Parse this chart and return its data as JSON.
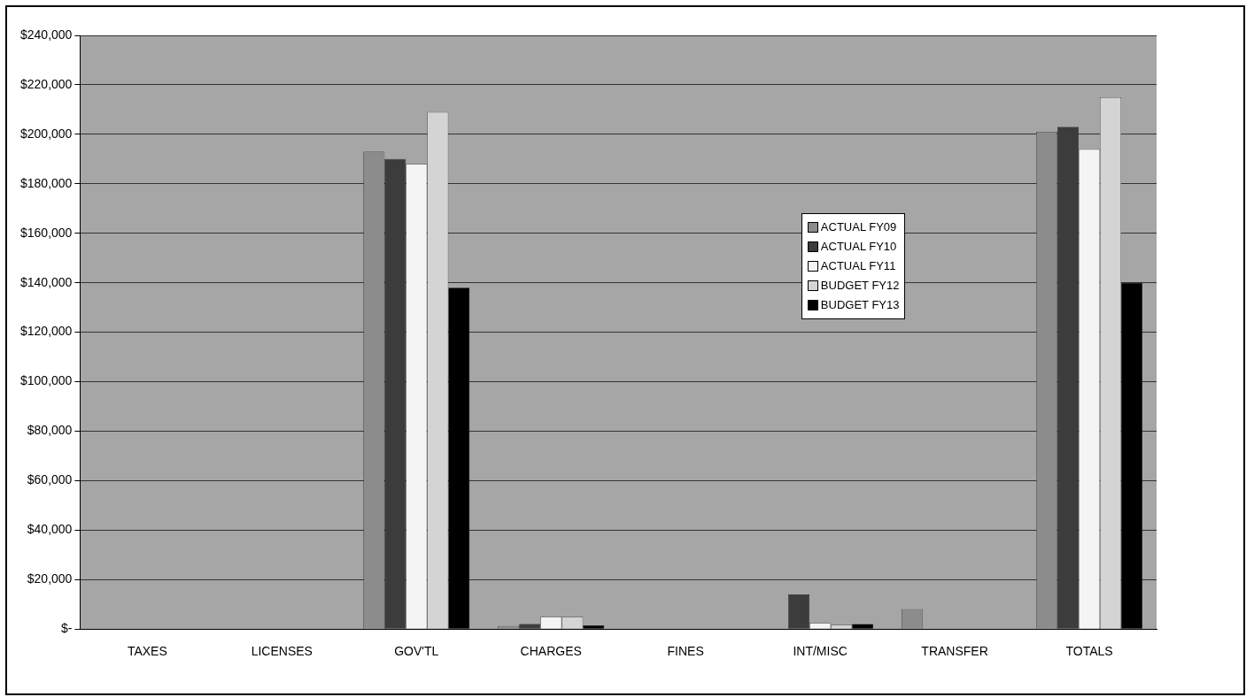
{
  "chart_data": {
    "type": "bar",
    "categories": [
      "TAXES",
      "LICENSES",
      "GOV'TL",
      "CHARGES",
      "FINES",
      "INT/MISC",
      "TRANSFER",
      "TOTALS"
    ],
    "series": [
      {
        "name": "ACTUAL FY09",
        "color": "#8c8c8c",
        "values": [
          0,
          0,
          193000,
          1200,
          0,
          0,
          8000,
          201000
        ]
      },
      {
        "name": "ACTUAL FY10",
        "color": "#3c3c3c",
        "values": [
          0,
          0,
          190000,
          2000,
          0,
          14000,
          0,
          203000
        ]
      },
      {
        "name": "ACTUAL FY11",
        "color": "#f4f4f4",
        "values": [
          0,
          0,
          188000,
          5000,
          0,
          2500,
          0,
          194000
        ]
      },
      {
        "name": "BUDGET FY12",
        "color": "#d4d4d4",
        "values": [
          0,
          0,
          209000,
          5000,
          0,
          1800,
          0,
          215000
        ]
      },
      {
        "name": "BUDGET FY13",
        "color": "#000000",
        "values": [
          0,
          0,
          138000,
          1500,
          0,
          2000,
          0,
          140000
        ]
      }
    ],
    "ylim": [
      0,
      240000
    ],
    "yticks": [
      {
        "value": 0,
        "label": "$-"
      },
      {
        "value": 20000,
        "label": "$20,000"
      },
      {
        "value": 40000,
        "label": "$40,000"
      },
      {
        "value": 60000,
        "label": "$60,000"
      },
      {
        "value": 80000,
        "label": "$80,000"
      },
      {
        "value": 100000,
        "label": "$100,000"
      },
      {
        "value": 120000,
        "label": "$120,000"
      },
      {
        "value": 140000,
        "label": "$140,000"
      },
      {
        "value": 160000,
        "label": "$160,000"
      },
      {
        "value": 180000,
        "label": "$180,000"
      },
      {
        "value": 200000,
        "label": "$200,000"
      },
      {
        "value": 220000,
        "label": "$220,000"
      },
      {
        "value": 240000,
        "label": "$240,000"
      }
    ],
    "grid": "y",
    "legend": "right"
  }
}
